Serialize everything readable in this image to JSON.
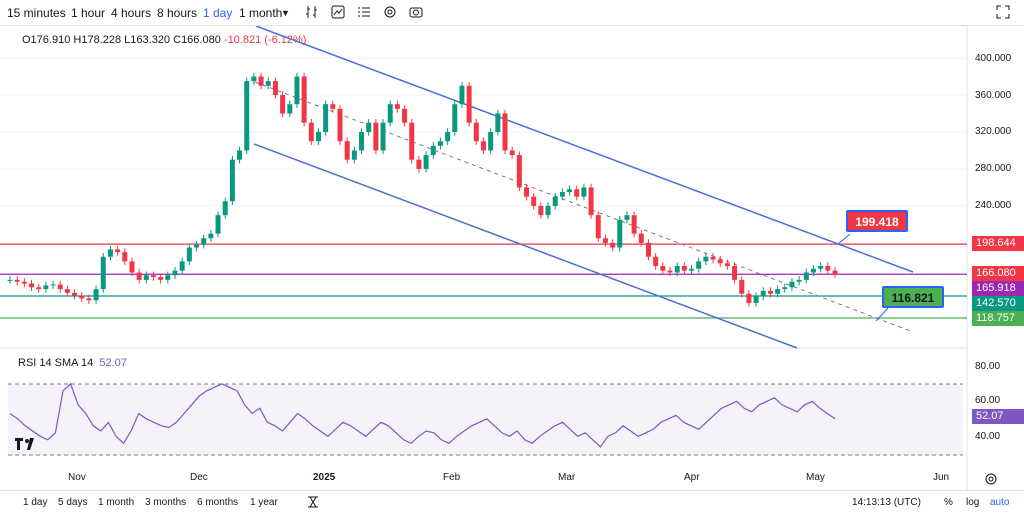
{
  "toolbar": {
    "timeframes": [
      "15 minutes",
      "1 hour",
      "4 hours",
      "8 hours",
      "1 day",
      "1 month"
    ],
    "active": "1 day",
    "icons": [
      "chart-style-icon",
      "indicators-icon",
      "compare-icon",
      "settings-icon",
      "camera-icon",
      "fullscreen-icon"
    ]
  },
  "ohlc": {
    "o": "O176.910",
    "h": "H178.228",
    "l": "L163.320",
    "c": "C166.080",
    "chg": "-10.821 (-6.12%)"
  },
  "price_axis": [
    "400.000",
    "360.000",
    "320.000",
    "280.000",
    "240.000"
  ],
  "price_labels": [
    {
      "text": "198.644",
      "bg": "#f23645",
      "color": "#ffffff"
    },
    {
      "text": "166.080",
      "bg": "#f23645",
      "color": "#ffffff"
    },
    {
      "text": "165.918",
      "bg": "#9c27b0",
      "color": "#ffffff"
    },
    {
      "text": "142.570",
      "bg": "#089981",
      "color": "#ffffff"
    },
    {
      "text": "118.757",
      "bg": "#4caf50",
      "color": "#ffffff"
    }
  ],
  "annotations": [
    {
      "text": "199.418",
      "bg": "#f23645",
      "border": "#2962ff"
    },
    {
      "text": "116.821",
      "bg": "#4caf50",
      "border": "#2962ff"
    }
  ],
  "rsi": {
    "title": "RSI 14 SMA 14",
    "value": "52.07",
    "axis": [
      "80.00",
      "60.00",
      "40.00"
    ],
    "current": "52.07"
  },
  "time_axis": [
    "Nov",
    "Dec",
    "2025",
    "Feb",
    "Mar",
    "Apr",
    "May",
    "Jun"
  ],
  "bottom": {
    "ranges": [
      "1 day",
      "5 days",
      "1 month",
      "3 months",
      "6 months",
      "1 year"
    ],
    "time": "14:13:13 (UTC)",
    "pct": "%",
    "log": "log",
    "auto": "auto"
  },
  "colors": {
    "up": "#089981",
    "down": "#f23645",
    "channel": "#4a72d4",
    "rsi": "#7e57c2"
  },
  "chart_data": {
    "type": "candlestick",
    "closes": [
      160,
      158,
      156,
      152,
      150,
      154,
      155,
      150,
      146,
      143,
      140,
      138,
      150,
      185,
      193,
      190,
      180,
      168,
      160,
      165,
      163,
      160,
      165,
      170,
      180,
      195,
      198,
      205,
      210,
      230,
      245,
      290,
      300,
      375,
      380,
      370,
      375,
      360,
      340,
      350,
      380,
      330,
      310,
      320,
      350,
      345,
      310,
      290,
      300,
      320,
      330,
      300,
      330,
      350,
      345,
      330,
      290,
      280,
      295,
      305,
      310,
      320,
      350,
      370,
      330,
      310,
      300,
      320,
      340,
      300,
      295,
      260,
      250,
      240,
      230,
      240,
      250,
      255,
      258,
      250,
      260,
      230,
      205,
      200,
      195,
      225,
      230,
      210,
      200,
      185,
      175,
      170,
      168,
      175,
      170,
      172,
      180,
      185,
      182,
      178,
      175,
      160,
      145,
      135,
      142,
      148,
      145,
      150,
      152,
      158,
      160,
      168,
      172,
      175,
      170,
      166
    ],
    "rsi": [
      55,
      52,
      48,
      45,
      42,
      40,
      44,
      68,
      72,
      60,
      55,
      48,
      45,
      50,
      42,
      38,
      45,
      55,
      52,
      50,
      48,
      47,
      50,
      55,
      60,
      65,
      68,
      70,
      72,
      70,
      68,
      60,
      55,
      58,
      50,
      48,
      45,
      50,
      55,
      52,
      48,
      45,
      42,
      46,
      50,
      48,
      45,
      42,
      46,
      50,
      48,
      44,
      40,
      38,
      42,
      45,
      44,
      40,
      38,
      42,
      45,
      48,
      50,
      52,
      48,
      44,
      42,
      45,
      40,
      38,
      42,
      45,
      48,
      50,
      46,
      42,
      44,
      40,
      36,
      42,
      44,
      48,
      45,
      42,
      44,
      46,
      50,
      52,
      54,
      50,
      48,
      46,
      50,
      54,
      58,
      60,
      62,
      58,
      56,
      60,
      62,
      64,
      60,
      58,
      56,
      60,
      62,
      58,
      55,
      52
    ],
    "ylim": [
      100,
      420
    ],
    "rsi_ylim": [
      25,
      85
    ],
    "horizontal_levels": [
      198.644,
      166.08,
      142.57,
      118.757
    ]
  }
}
